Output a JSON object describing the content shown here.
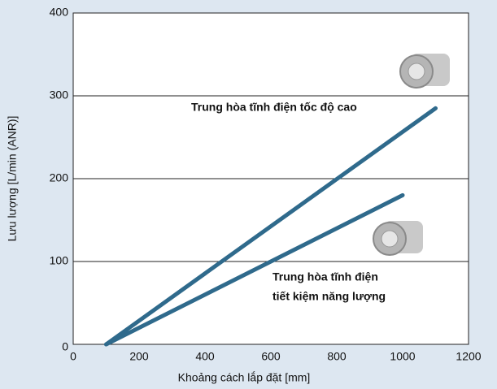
{
  "chart_data": {
    "type": "line",
    "x_label": "Khoảng cách lắp đặt [mm]",
    "y_label": "Lưu lượng [L/min (ANR)]",
    "xlim": [
      0,
      1200
    ],
    "xticks": [
      0,
      200,
      400,
      600,
      800,
      1000,
      1200
    ],
    "ylim": [
      0,
      400
    ],
    "yticks": [
      0,
      100,
      200,
      300,
      400
    ],
    "grid": true,
    "series": [
      {
        "color": "#2f6a8c",
        "x": [
          100,
          1100
        ],
        "values": [
          0,
          285
        ]
      },
      {
        "color": "#2f6a8c",
        "x": [
          100,
          1000
        ],
        "values": [
          0,
          180
        ]
      }
    ],
    "annotations": [
      {
        "lines": [
          "Trung hòa tĩnh điện tốc độ cao"
        ]
      },
      {
        "lines": [
          "Trung hòa tĩnh điện",
          "tiết kiệm năng lượng"
        ]
      }
    ]
  }
}
